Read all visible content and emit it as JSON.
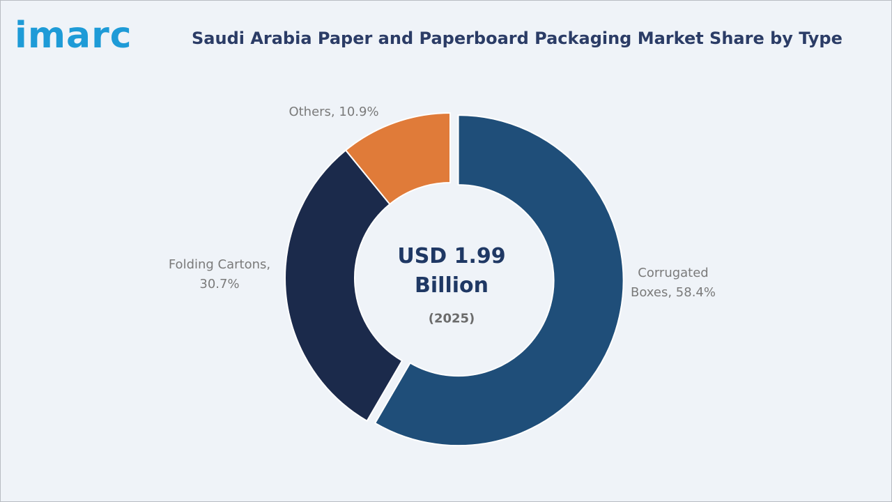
{
  "logo": "imarc",
  "chart_data": {
    "type": "donut",
    "title": "Saudi Arabia Paper and Paperboard Packaging Market Share by Type",
    "categories": [
      "Corrugated Boxes",
      "Folding Cartons",
      "Others"
    ],
    "values": [
      58.4,
      30.7,
      10.9
    ],
    "value_labels": [
      "Corrugated Boxes, 58.4%",
      "Folding Cartons, 30.7%",
      "Others, 10.9%"
    ],
    "colors": [
      "#1f4e79",
      "#1b2a4b",
      "#e07b39"
    ],
    "center_label": "USD 1.99 Billion",
    "center_sublabel": "(2025)"
  }
}
